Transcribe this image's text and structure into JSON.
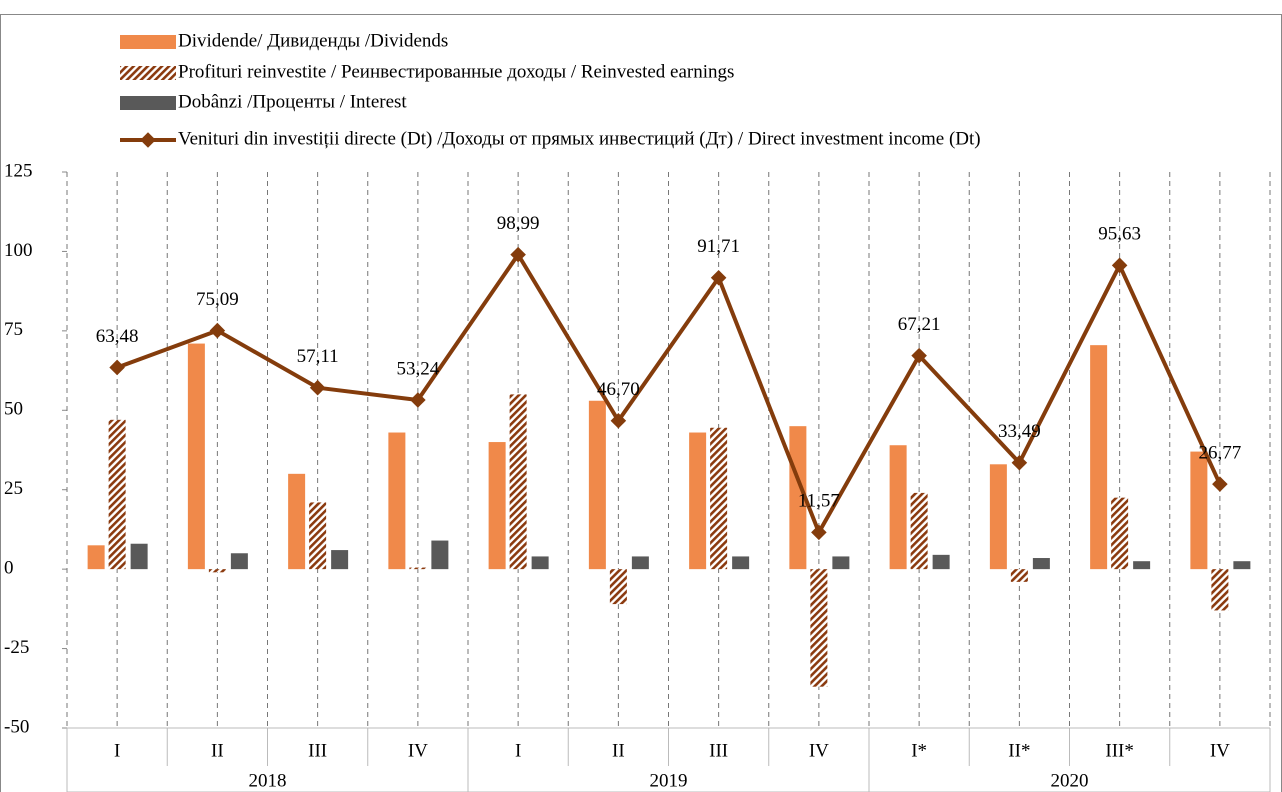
{
  "chart_data": {
    "type": "bar",
    "categories": [
      "I",
      "II",
      "III",
      "IV",
      "I",
      "II",
      "III",
      "IV",
      "I*",
      "II*",
      "III*",
      "IV"
    ],
    "years": [
      "2018",
      "2019",
      "2020"
    ],
    "series": [
      {
        "name": "Dividende/ Дивиденды /Dividends",
        "type": "bar",
        "color": "#f0894a",
        "values": [
          7.5,
          71,
          30,
          43,
          40,
          53,
          43,
          45,
          39,
          33,
          70.5,
          37
        ]
      },
      {
        "name": "Profituri reinvestite / Реинвестированные доходы / Reinvested earnings",
        "type": "bar",
        "pattern": "hatch",
        "color": "#8b3a0f",
        "values": [
          47,
          -1,
          21,
          0.5,
          55,
          -11,
          44.5,
          -37,
          24,
          -4,
          22.5,
          -13
        ]
      },
      {
        "name": "Dobânzi /Проценты / Interest",
        "type": "bar",
        "color": "#595959",
        "values": [
          8,
          5,
          6,
          9,
          4,
          4,
          4,
          4,
          4.5,
          3.5,
          2.5,
          2.5
        ]
      },
      {
        "name": "Venituri din investiții directe (Dt)  /Доходы от прямых инвестиций (Дт) / Direct investment income (Dt)",
        "type": "line",
        "color": "#843c0c",
        "values": [
          63.48,
          75.09,
          57.11,
          53.24,
          98.99,
          46.7,
          91.71,
          11.57,
          67.21,
          33.49,
          95.63,
          26.77
        ],
        "value_labels": [
          "63,48",
          "75,09",
          "57,11",
          "53,24",
          "98,99",
          "46,70",
          "91,71",
          "11,57",
          "67,21",
          "33,49",
          "95,63",
          "26,77"
        ]
      }
    ],
    "ylim": [
      -50,
      125
    ],
    "yticks": [
      125,
      100,
      75,
      50,
      25,
      0,
      -25,
      -50
    ],
    "grid": true
  }
}
